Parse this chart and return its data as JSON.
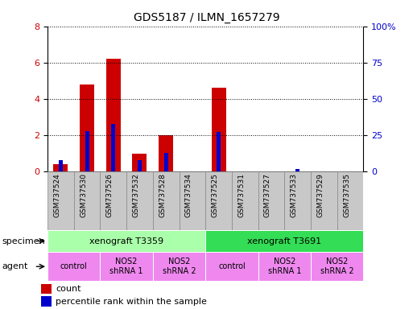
{
  "title": "GDS5187 / ILMN_1657279",
  "samples": [
    "GSM737524",
    "GSM737530",
    "GSM737526",
    "GSM737532",
    "GSM737528",
    "GSM737534",
    "GSM737525",
    "GSM737531",
    "GSM737527",
    "GSM737533",
    "GSM737529",
    "GSM737535"
  ],
  "counts": [
    0.4,
    4.8,
    6.2,
    1.0,
    2.0,
    0.0,
    4.6,
    0.0,
    0.0,
    0.0,
    0.0,
    0.0
  ],
  "percentile_ranks": [
    8,
    28,
    33,
    8,
    13,
    0,
    27,
    0,
    0,
    2,
    0,
    0
  ],
  "ylim_left": [
    0,
    8
  ],
  "ylim_right": [
    0,
    100
  ],
  "yticks_left": [
    0,
    2,
    4,
    6,
    8
  ],
  "yticks_right": [
    0,
    25,
    50,
    75,
    100
  ],
  "ytick_labels_right": [
    "0",
    "25",
    "50",
    "75",
    "100%"
  ],
  "bar_color_count": "#cc0000",
  "bar_color_pct": "#0000cc",
  "specimen_groups": [
    {
      "label": "xenograft T3359",
      "start": 0,
      "end": 6,
      "color": "#aaffaa"
    },
    {
      "label": "xenograft T3691",
      "start": 6,
      "end": 12,
      "color": "#33dd55"
    }
  ],
  "agent_groups": [
    {
      "label": "control",
      "start": 0,
      "end": 2,
      "color": "#ee88ee"
    },
    {
      "label": "NOS2\nshRNA 1",
      "start": 2,
      "end": 4,
      "color": "#ee88ee"
    },
    {
      "label": "NOS2\nshRNA 2",
      "start": 4,
      "end": 6,
      "color": "#ee88ee"
    },
    {
      "label": "control",
      "start": 6,
      "end": 8,
      "color": "#ee88ee"
    },
    {
      "label": "NOS2\nshRNA 1",
      "start": 8,
      "end": 10,
      "color": "#ee88ee"
    },
    {
      "label": "NOS2\nshRNA 2",
      "start": 10,
      "end": 12,
      "color": "#ee88ee"
    }
  ],
  "legend_count_label": "count",
  "legend_pct_label": "percentile rank within the sample",
  "specimen_label": "specimen",
  "agent_label": "agent",
  "bar_width": 0.55,
  "pct_bar_width": 0.15,
  "xlabel_color": "#c8c8c8",
  "fig_width": 5.13,
  "fig_height": 3.84,
  "dpi": 100
}
